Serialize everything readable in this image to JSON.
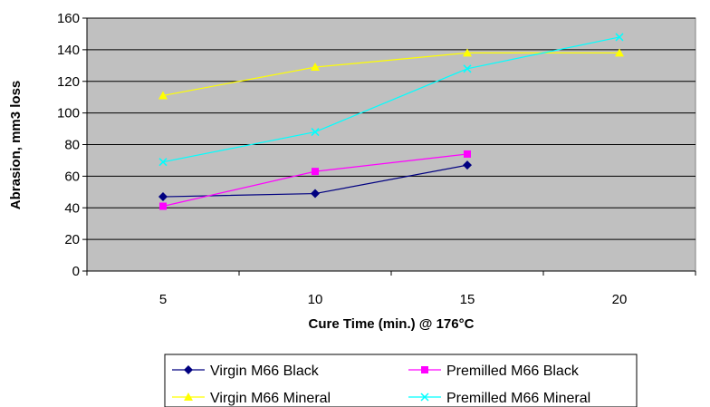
{
  "chart_data": {
    "type": "line",
    "title": "",
    "xlabel": "Cure Time (min.) @ 176°C",
    "ylabel": "Abrasion, mm3 loss",
    "x_ticks": [
      "5",
      "10",
      "15",
      "20"
    ],
    "y_ticks": [
      "0",
      "20",
      "40",
      "60",
      "80",
      "100",
      "120",
      "140",
      "160"
    ],
    "xlim": [
      2.5,
      22.5
    ],
    "ylim": [
      0,
      160
    ],
    "grid": "horizontal major gridlines",
    "legend_position": "bottom",
    "plot_background": "#c0c0c0",
    "series": [
      {
        "name": "Virgin M66 Black",
        "color": "#000080",
        "marker": "diamond",
        "x": [
          5,
          10,
          15
        ],
        "values": [
          47,
          49,
          67
        ]
      },
      {
        "name": "Premilled M66 Black",
        "color": "#ff00ff",
        "marker": "square",
        "x": [
          5,
          10,
          15
        ],
        "values": [
          41,
          63,
          74
        ]
      },
      {
        "name": "Virgin M66 Mineral",
        "color": "#ffff00",
        "marker": "triangle",
        "x": [
          5,
          10,
          15,
          20
        ],
        "values": [
          111,
          129,
          138,
          138
        ]
      },
      {
        "name": "Premilled M66 Mineral",
        "color": "#00ffff",
        "marker": "x",
        "x": [
          5,
          10,
          15,
          20
        ],
        "values": [
          69,
          88,
          128,
          148
        ]
      }
    ]
  }
}
